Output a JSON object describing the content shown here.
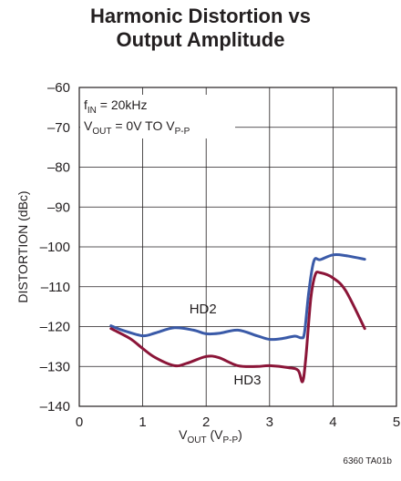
{
  "chart_data": {
    "type": "line",
    "title_lines": [
      "Harmonic Distortion vs",
      "Output Amplitude"
    ],
    "xlabel": {
      "main": "V",
      "sub": "OUT",
      "rest": " (V",
      "sub2": "P-P",
      "end": ")"
    },
    "ylabel": "DISTORTION (dBc)",
    "xlim": [
      0,
      5
    ],
    "ylim": [
      -140,
      -60
    ],
    "x_ticks": [
      0,
      1,
      2,
      3,
      4,
      5
    ],
    "y_ticks": [
      -60,
      -70,
      -80,
      -90,
      -100,
      -110,
      -120,
      -130,
      -140
    ],
    "x_tick_labels": [
      "0",
      "1",
      "2",
      "3",
      "4",
      "5"
    ],
    "y_tick_labels": [
      "–60",
      "–70",
      "–80",
      "–90",
      "–100",
      "–110",
      "–120",
      "–130",
      "–140"
    ],
    "grid": true,
    "annotation": {
      "line1": {
        "main": "f",
        "sub": "IN",
        "rest": " = 20kHz"
      },
      "line2": {
        "main": "V",
        "sub": "OUT",
        "rest": " = 0V TO V",
        "sub2": "P-P"
      }
    },
    "series": [
      {
        "name": "HD2",
        "color": "#3a5aa8",
        "x": [
          0.5,
          0.7,
          1.0,
          1.2,
          1.5,
          1.8,
          2.0,
          2.2,
          2.5,
          2.8,
          3.0,
          3.2,
          3.4,
          3.5,
          3.55,
          3.62,
          3.7,
          3.8,
          4.0,
          4.2,
          4.5
        ],
        "y": [
          -119.8,
          -121.0,
          -122.3,
          -121.6,
          -120.3,
          -120.9,
          -121.8,
          -121.7,
          -120.9,
          -122.3,
          -123.2,
          -123.0,
          -122.4,
          -122.8,
          -121.5,
          -111.0,
          -103.5,
          -103.2,
          -102.0,
          -102.2,
          -103.1
        ]
      },
      {
        "name": "HD3",
        "color": "#8b1538",
        "x": [
          0.5,
          0.8,
          1.0,
          1.2,
          1.5,
          1.7,
          2.0,
          2.2,
          2.5,
          2.8,
          3.0,
          3.3,
          3.45,
          3.52,
          3.57,
          3.65,
          3.72,
          3.8,
          4.0,
          4.2,
          4.5
        ],
        "y": [
          -120.5,
          -123.0,
          -125.5,
          -127.8,
          -129.8,
          -129.2,
          -127.5,
          -127.8,
          -129.8,
          -130.0,
          -129.8,
          -130.3,
          -131.0,
          -133.8,
          -128.0,
          -113.0,
          -107.0,
          -106.5,
          -107.8,
          -111.0,
          -120.5
        ]
      }
    ],
    "series_labels": [
      {
        "text": "HD2",
        "x": 1.95,
        "y": -116.7
      },
      {
        "text": "HD3",
        "x": 2.65,
        "y": -134.5
      }
    ]
  },
  "footnote": "6360 TA01b"
}
